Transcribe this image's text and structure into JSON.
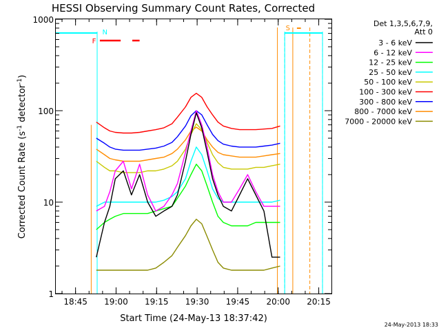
{
  "chart_data": {
    "type": "line",
    "title": "HESSI Observing Summary Count Rates, Corrected",
    "xlabel": "Start Time (24-May-13 18:37:42)",
    "ylabel_main": "Corrected Count Rate (s",
    "ylabel_sup1": "-1",
    "ylabel_mid": " detector",
    "ylabel_sup2": "-1",
    "ylabel_end": ")",
    "x_unit": "minutes after 18:37:42",
    "xlim": [
      0,
      102
    ],
    "ylim": [
      1,
      1000
    ],
    "y_scale": "log",
    "grid": false,
    "x_ticks": [
      {
        "pos": 7.3,
        "label": "18:45"
      },
      {
        "pos": 22.3,
        "label": "19:00"
      },
      {
        "pos": 37.3,
        "label": "19:15"
      },
      {
        "pos": 52.3,
        "label": "19:30"
      },
      {
        "pos": 67.3,
        "label": "19:45"
      },
      {
        "pos": 82.3,
        "label": "20:00"
      },
      {
        "pos": 97.3,
        "label": "20:15"
      }
    ],
    "y_ticks": [
      {
        "value": 1,
        "label": "1"
      },
      {
        "value": 10,
        "label": "10"
      },
      {
        "value": 100,
        "label": "100"
      },
      {
        "value": 1000,
        "label": "1000"
      }
    ],
    "legend": {
      "position": "right",
      "header1": "Det 1,3,5,6,7,9,",
      "header2": "Att 0"
    },
    "series": [
      {
        "name": "3 - 6 keV",
        "color": "#000000",
        "x": [
          15,
          18,
          20,
          22,
          25,
          28,
          31,
          34,
          37,
          40,
          43,
          45,
          48,
          50,
          52,
          54,
          56,
          58,
          60,
          62,
          65,
          68,
          71,
          74,
          77,
          80,
          83
        ],
        "y": [
          2.5,
          6,
          9,
          18,
          22,
          12,
          20,
          10,
          7,
          8,
          9,
          12,
          28,
          55,
          95,
          65,
          35,
          18,
          12,
          9,
          8,
          12,
          18,
          12,
          8,
          2.5,
          2.5
        ]
      },
      {
        "name": "6 - 12 keV",
        "color": "#ff00ff",
        "x": [
          15,
          18,
          20,
          22,
          25,
          28,
          31,
          34,
          37,
          40,
          43,
          45,
          48,
          50,
          52,
          54,
          56,
          58,
          60,
          62,
          65,
          68,
          71,
          74,
          77,
          80,
          83
        ],
        "y": [
          8,
          9,
          13,
          22,
          28,
          14,
          26,
          12,
          8,
          9,
          12,
          16,
          35,
          60,
          100,
          70,
          40,
          20,
          13,
          10,
          10,
          14,
          20,
          13,
          9,
          9,
          9
        ]
      },
      {
        "name": "12 - 25 keV",
        "color": "#00ff00",
        "x": [
          15,
          18,
          20,
          22,
          25,
          28,
          31,
          34,
          37,
          40,
          43,
          45,
          48,
          50,
          52,
          54,
          56,
          58,
          60,
          62,
          65,
          68,
          71,
          74,
          77,
          80,
          83
        ],
        "y": [
          5,
          6,
          6.5,
          7,
          7.5,
          7.5,
          7.5,
          7.5,
          8,
          8.5,
          9,
          11,
          15,
          20,
          26,
          22,
          15,
          10,
          7,
          6,
          5.5,
          5.5,
          5.5,
          6,
          6,
          6,
          6
        ]
      },
      {
        "name": "25 - 50 keV",
        "color": "#00ffff",
        "x": [
          15,
          18,
          20,
          22,
          25,
          28,
          31,
          34,
          37,
          40,
          43,
          45,
          48,
          50,
          52,
          54,
          56,
          58,
          60,
          62,
          65,
          68,
          71,
          74,
          77,
          80,
          83
        ],
        "y": [
          9,
          10,
          10,
          10,
          10,
          10,
          10,
          10,
          10,
          10.5,
          11.5,
          13,
          18,
          28,
          40,
          33,
          22,
          14,
          11,
          10,
          10,
          10,
          10,
          10,
          10,
          10,
          10.5
        ]
      },
      {
        "name": "50 - 100 keV",
        "color": "#c8c800",
        "x": [
          15,
          18,
          20,
          22,
          25,
          28,
          31,
          34,
          37,
          40,
          43,
          45,
          48,
          50,
          52,
          54,
          56,
          58,
          60,
          62,
          65,
          68,
          71,
          74,
          77,
          80,
          83
        ],
        "y": [
          28,
          24,
          22,
          22,
          21,
          21,
          21,
          22,
          22,
          23,
          25,
          28,
          38,
          55,
          72,
          62,
          45,
          33,
          27,
          24,
          23,
          23,
          23,
          24,
          24,
          25,
          26
        ]
      },
      {
        "name": "100 - 300 keV",
        "color": "#ff0000",
        "x": [
          15,
          18,
          20,
          22,
          25,
          28,
          31,
          34,
          37,
          40,
          43,
          45,
          48,
          50,
          52,
          54,
          56,
          58,
          60,
          62,
          65,
          68,
          71,
          74,
          77,
          80,
          83
        ],
        "y": [
          75,
          65,
          60,
          58,
          57,
          57,
          58,
          60,
          62,
          65,
          72,
          85,
          110,
          140,
          155,
          140,
          110,
          90,
          75,
          68,
          64,
          62,
          62,
          62,
          63,
          64,
          68
        ]
      },
      {
        "name": "300 - 800 keV",
        "color": "#0000ff",
        "x": [
          15,
          18,
          20,
          22,
          25,
          28,
          31,
          34,
          37,
          40,
          43,
          45,
          48,
          50,
          52,
          54,
          56,
          58,
          60,
          62,
          65,
          68,
          71,
          74,
          77,
          80,
          83
        ],
        "y": [
          50,
          44,
          40,
          38,
          37,
          37,
          37,
          38,
          39,
          41,
          45,
          52,
          68,
          88,
          100,
          90,
          70,
          55,
          47,
          43,
          41,
          40,
          40,
          40,
          41,
          42,
          44
        ]
      },
      {
        "name": "800 - 7000 keV",
        "color": "#ff8c00",
        "x": [
          15,
          18,
          20,
          22,
          25,
          28,
          31,
          34,
          37,
          40,
          43,
          45,
          48,
          50,
          52,
          54,
          56,
          58,
          60,
          62,
          65,
          68,
          71,
          74,
          77,
          80,
          83
        ],
        "y": [
          38,
          33,
          30,
          29,
          28,
          28,
          28,
          29,
          30,
          31,
          34,
          38,
          48,
          60,
          66,
          60,
          48,
          40,
          35,
          33,
          32,
          31,
          31,
          31,
          32,
          33,
          34
        ]
      },
      {
        "name": "7000 - 20000 keV",
        "color": "#8b8b00",
        "x": [
          15,
          18,
          20,
          22,
          25,
          28,
          31,
          34,
          37,
          40,
          43,
          45,
          48,
          50,
          52,
          54,
          56,
          58,
          60,
          62,
          65,
          68,
          71,
          74,
          77,
          80,
          83
        ],
        "y": [
          1.8,
          1.8,
          1.8,
          1.8,
          1.8,
          1.8,
          1.8,
          1.8,
          1.9,
          2.2,
          2.6,
          3.2,
          4.3,
          5.5,
          6.5,
          5.8,
          4.2,
          3,
          2.2,
          1.9,
          1.8,
          1.8,
          1.8,
          1.8,
          1.8,
          1.9,
          2
        ]
      }
    ],
    "annotations": {
      "attenuator_label": "F",
      "night_label_left": "N",
      "saa_label": "S",
      "date_stamp": "24-May-2013 18:33"
    },
    "overlays": {
      "night_left": {
        "start": 0,
        "end": 15.3,
        "color": "#00ffff"
      },
      "night_right": {
        "start": 84.7,
        "end": 98.7,
        "color": "#00ffff"
      },
      "saa": {
        "start": 87.7,
        "end": 94.0,
        "color": "#ff8c00"
      },
      "flare_segments": [
        [
          16.3,
          24.0
        ],
        [
          28.3,
          31.0
        ]
      ],
      "flare_color": "#ff0000",
      "orange_vlines": [
        13.1,
        82.0,
        87.7,
        94.0
      ],
      "cyan_vlines": [
        15.3,
        84.7,
        98.7
      ]
    }
  }
}
